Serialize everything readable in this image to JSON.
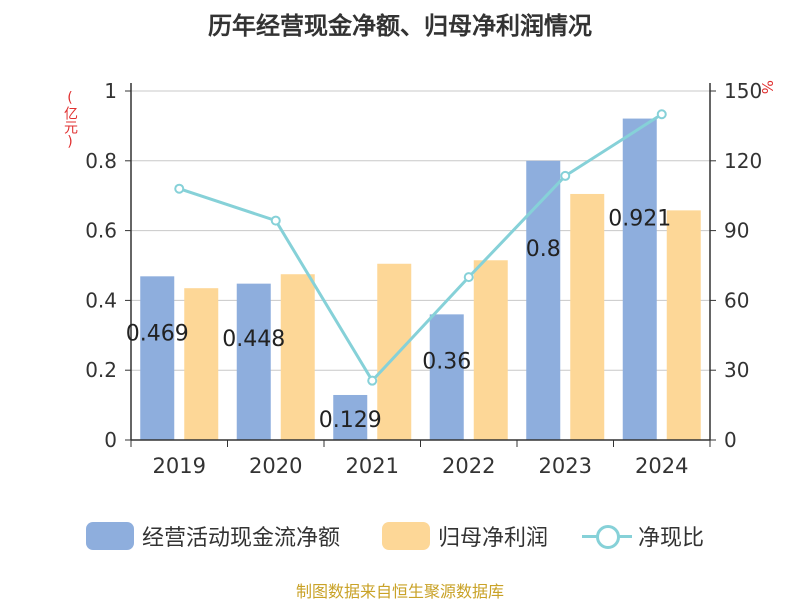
{
  "chart_data": {
    "type": "bar+line",
    "title": "历年经营现金净额、归母净利润情况",
    "categories": [
      "2019",
      "2020",
      "2021",
      "2022",
      "2023",
      "2024"
    ],
    "y_left": {
      "label": "(亿元)",
      "ylim": [
        0,
        1
      ],
      "ticks": [
        "0",
        "0.2",
        "0.4",
        "0.6",
        "0.8",
        "1"
      ]
    },
    "y_right": {
      "label": "%",
      "ylim": [
        0,
        150
      ],
      "ticks": [
        "0",
        "30",
        "60",
        "90",
        "120",
        "150"
      ]
    },
    "series": [
      {
        "name": "经营活动现金流净额",
        "type": "bar",
        "axis": "left",
        "color": "#8eaedd",
        "values": [
          0.469,
          0.448,
          0.129,
          0.36,
          0.8,
          0.921
        ],
        "labels": [
          "0.469",
          "0.448",
          "0.129",
          "0.36",
          "0.8",
          "0.921"
        ]
      },
      {
        "name": "归母净利润",
        "type": "bar",
        "axis": "left",
        "color": "#fdd797",
        "values": [
          0.435,
          0.475,
          0.505,
          0.515,
          0.705,
          0.658
        ]
      },
      {
        "name": "净现比",
        "type": "line",
        "axis": "right",
        "color": "#86d1d8",
        "values": [
          108,
          94.3,
          25.5,
          70,
          113.5,
          140
        ]
      }
    ],
    "grid": true,
    "legend_position": "bottom"
  },
  "footer": {
    "source": "制图数据来自恒生聚源数据库"
  }
}
